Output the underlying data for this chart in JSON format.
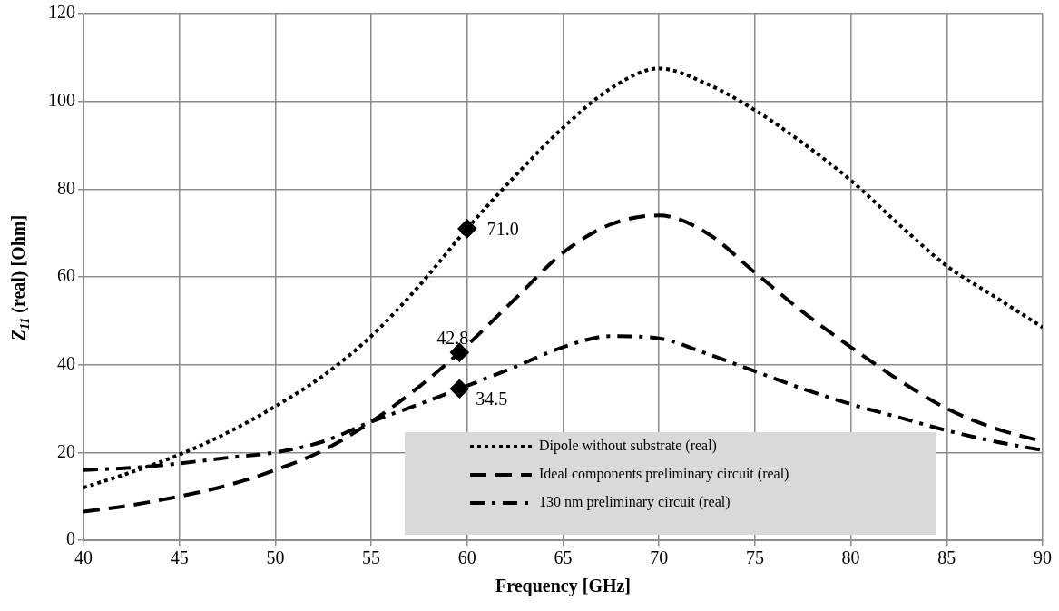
{
  "chart_data": {
    "type": "line",
    "xlabel": "Frequency [GHz]",
    "ylabel": "Z$_{11}$ (real) [Ohm]",
    "xlim": [
      40,
      90
    ],
    "xticks": [
      40,
      45,
      50,
      55,
      60,
      65,
      70,
      75,
      80,
      85,
      90
    ],
    "ylim": [
      0,
      120
    ],
    "yticks": [
      0,
      20,
      40,
      60,
      80,
      100,
      120
    ],
    "grid": true,
    "legend": "bottom right",
    "marker": "none",
    "series": [
      {
        "name": "Dipole without substrate (real)",
        "color": "#000000",
        "line_style": "dotted",
        "x": [
          40,
          42.5,
          45,
          47.5,
          50,
          52.5,
          55,
          57.5,
          60,
          62.5,
          65,
          67.5,
          70,
          72.5,
          75,
          77.5,
          80,
          82.5,
          85,
          87.5,
          90
        ],
        "values": [
          12,
          15.5,
          19.5,
          24.5,
          30.5,
          37.5,
          46.5,
          58,
          71,
          83,
          94,
          103,
          107.5,
          104,
          98,
          90.5,
          82,
          72,
          62.5,
          55.5,
          48.5
        ]
      },
      {
        "name": "Ideal components preliminary circuit (real)",
        "color": "#000000",
        "line_style": "dashed",
        "x": [
          40,
          42.5,
          45,
          47.5,
          50,
          52.5,
          55,
          57.5,
          59.6,
          62.5,
          65,
          67.5,
          70,
          72.5,
          75,
          77.5,
          80,
          82.5,
          85,
          87.5,
          90
        ],
        "values": [
          6.5,
          8,
          10,
          12.5,
          16,
          20.5,
          27,
          35,
          42.8,
          55,
          65.5,
          72,
          74,
          70,
          61,
          52,
          44,
          36.5,
          30,
          25.5,
          22.5
        ]
      },
      {
        "name": "130 nm preliminary circuit (real)",
        "color": "#000000",
        "line_style": "dashdot",
        "x": [
          40,
          42.5,
          45,
          47.5,
          50,
          52.5,
          55,
          57.5,
          59.6,
          62.5,
          65,
          67.5,
          70,
          72.5,
          75,
          77.5,
          80,
          82.5,
          85,
          87.5,
          90
        ],
        "values": [
          16,
          16.5,
          17.5,
          18.8,
          20,
          22.5,
          27,
          31,
          34.5,
          39.5,
          44,
          46.5,
          46,
          42.5,
          38.5,
          34.5,
          31,
          28,
          25,
          22.5,
          20.5
        ]
      },
      {
        "type": "scatter",
        "marker": "diamond",
        "color": "#000000",
        "x": [
          60,
          59.6,
          59.6
        ],
        "values": [
          71.0,
          42.8,
          34.5
        ],
        "value_labels": [
          "71.0",
          "42.8",
          "34.5"
        ]
      }
    ]
  }
}
